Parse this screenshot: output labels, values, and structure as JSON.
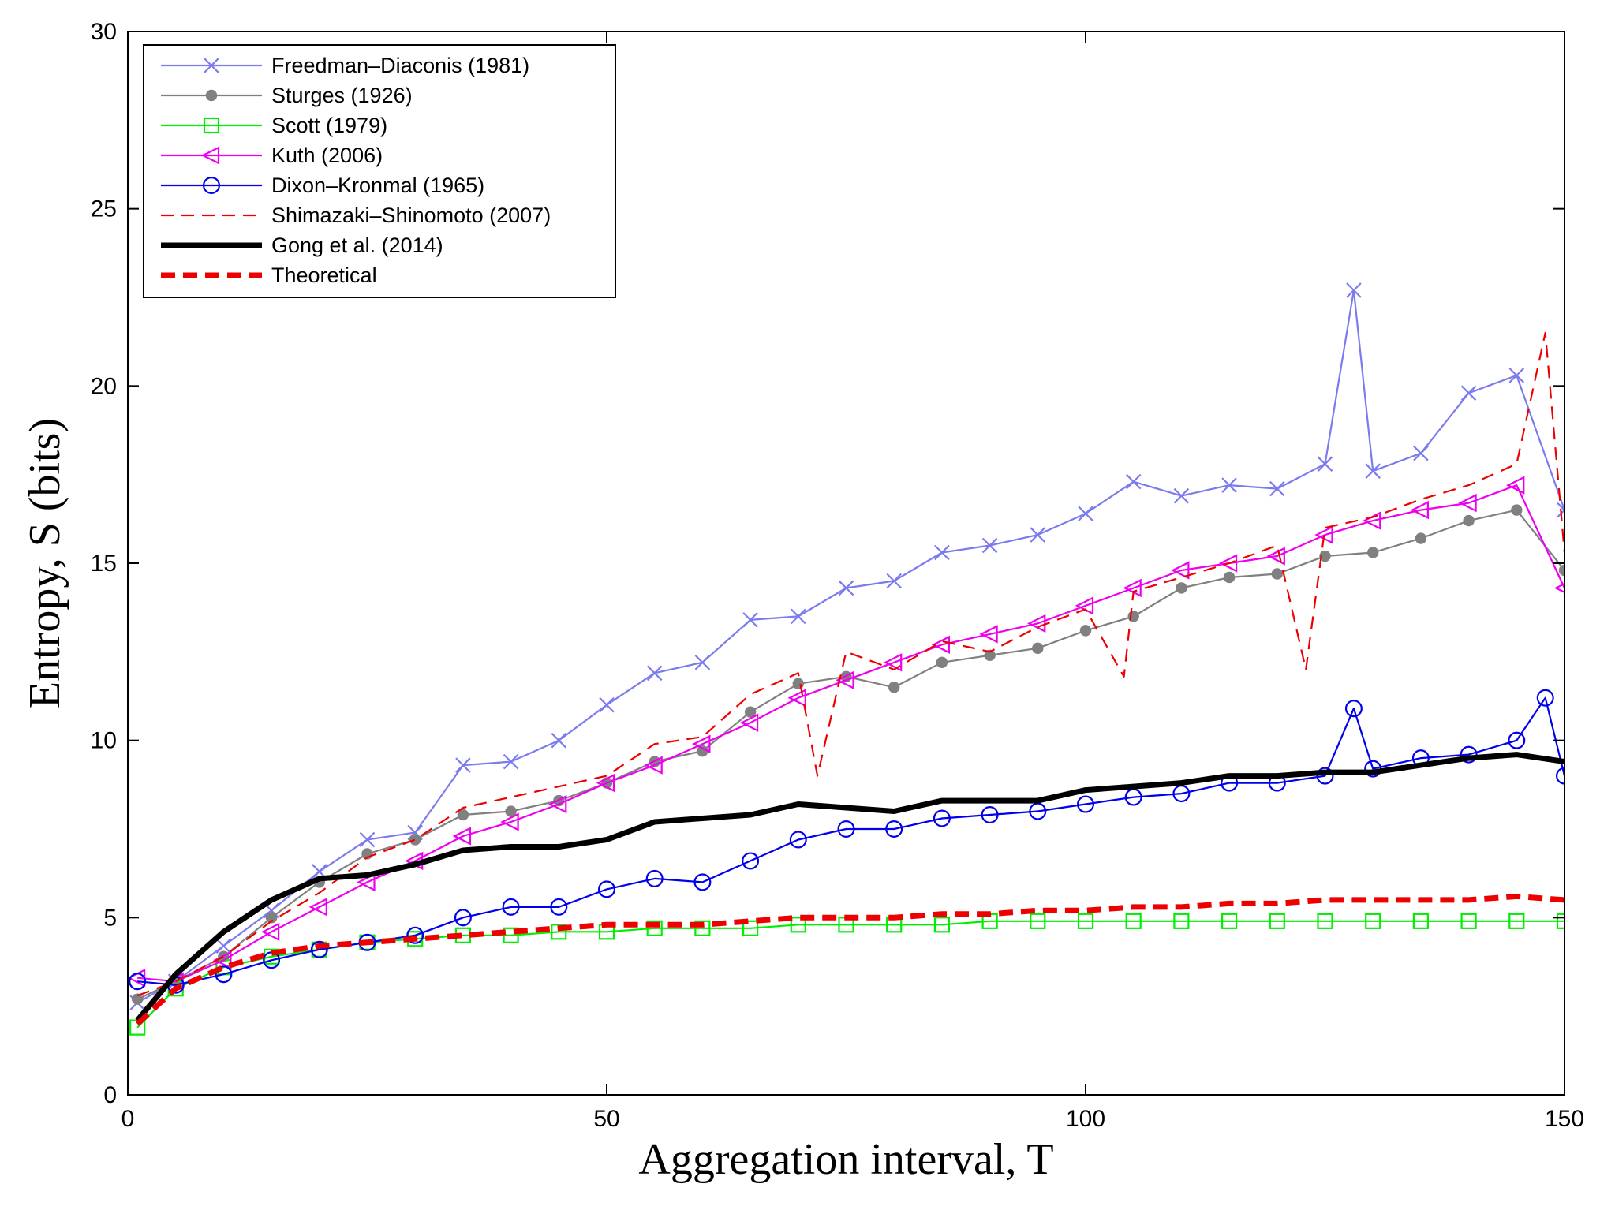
{
  "chart_data": {
    "type": "line",
    "title": "",
    "xlabel": "Aggregation interval, T",
    "ylabel": "Entropy, S (bits)",
    "xlim": [
      0,
      150
    ],
    "ylim": [
      0,
      30
    ],
    "xticks": [
      0,
      50,
      100,
      150
    ],
    "yticks": [
      0,
      5,
      10,
      15,
      20,
      25,
      30
    ],
    "xtick_labels": [
      "0",
      "50",
      "100",
      "150"
    ],
    "ytick_labels": [
      "0",
      "5",
      "10",
      "15",
      "20",
      "25",
      "30"
    ],
    "grid": false,
    "legend_position": "top-left",
    "series": [
      {
        "name": "Freedman–Diaconis (1981)",
        "color": "#7b7bef",
        "style": "solid-thin",
        "marker": "x",
        "x": [
          1,
          5,
          10,
          15,
          20,
          25,
          30,
          35,
          40,
          45,
          50,
          55,
          60,
          65,
          70,
          75,
          80,
          85,
          90,
          95,
          100,
          105,
          110,
          115,
          120,
          125,
          128,
          130,
          135,
          140,
          145,
          150
        ],
        "y": [
          2.6,
          3.2,
          4.2,
          5.2,
          6.3,
          7.2,
          7.4,
          9.3,
          9.4,
          10.0,
          11.0,
          11.9,
          12.2,
          13.4,
          13.5,
          14.3,
          14.5,
          15.3,
          15.5,
          15.8,
          16.4,
          17.3,
          16.9,
          17.2,
          17.1,
          17.8,
          22.7,
          17.6,
          18.1,
          19.8,
          20.3,
          16.5
        ]
      },
      {
        "name": "Sturges (1926)",
        "color": "#808080",
        "style": "solid-thin",
        "marker": "dot",
        "x": [
          1,
          5,
          10,
          15,
          20,
          25,
          30,
          35,
          40,
          45,
          50,
          55,
          60,
          65,
          70,
          75,
          80,
          85,
          90,
          95,
          100,
          105,
          110,
          115,
          120,
          125,
          130,
          135,
          140,
          145,
          150
        ],
        "y": [
          2.7,
          3.2,
          3.9,
          5.0,
          6.0,
          6.8,
          7.2,
          7.9,
          8.0,
          8.3,
          8.8,
          9.4,
          9.7,
          10.8,
          11.6,
          11.8,
          11.5,
          12.2,
          12.4,
          12.6,
          13.1,
          13.5,
          14.3,
          14.6,
          14.7,
          15.2,
          15.3,
          15.7,
          16.2,
          16.5,
          14.8
        ]
      },
      {
        "name": "Scott (1979)",
        "color": "#00ee00",
        "style": "solid-thin",
        "marker": "square",
        "x": [
          1,
          5,
          10,
          15,
          20,
          25,
          30,
          35,
          40,
          45,
          50,
          55,
          60,
          65,
          70,
          75,
          80,
          85,
          90,
          95,
          100,
          105,
          110,
          115,
          120,
          125,
          130,
          135,
          140,
          145,
          150
        ],
        "y": [
          1.9,
          3.0,
          3.6,
          3.9,
          4.1,
          4.3,
          4.4,
          4.5,
          4.5,
          4.6,
          4.6,
          4.7,
          4.7,
          4.7,
          4.8,
          4.8,
          4.8,
          4.8,
          4.9,
          4.9,
          4.9,
          4.9,
          4.9,
          4.9,
          4.9,
          4.9,
          4.9,
          4.9,
          4.9,
          4.9,
          4.9
        ]
      },
      {
        "name": "Kuth (2006)",
        "color": "#ee00ee",
        "style": "solid-thin",
        "marker": "triangle-left",
        "x": [
          1,
          5,
          10,
          15,
          20,
          25,
          30,
          35,
          40,
          45,
          50,
          55,
          60,
          65,
          70,
          75,
          80,
          85,
          90,
          95,
          100,
          105,
          110,
          115,
          120,
          125,
          130,
          135,
          140,
          145,
          150
        ],
        "y": [
          3.3,
          3.2,
          3.8,
          4.6,
          5.3,
          6.0,
          6.6,
          7.3,
          7.7,
          8.2,
          8.8,
          9.3,
          9.9,
          10.5,
          11.2,
          11.7,
          12.2,
          12.7,
          13.0,
          13.3,
          13.8,
          14.3,
          14.8,
          15.0,
          15.2,
          15.8,
          16.2,
          16.5,
          16.7,
          17.2,
          14.3
        ]
      },
      {
        "name": "Dixon–Kronmal (1965)",
        "color": "#0000ee",
        "style": "solid-thin",
        "marker": "circle",
        "x": [
          1,
          5,
          10,
          15,
          20,
          25,
          30,
          35,
          40,
          45,
          50,
          55,
          60,
          65,
          70,
          75,
          80,
          85,
          90,
          95,
          100,
          105,
          110,
          115,
          120,
          125,
          128,
          130,
          135,
          140,
          145,
          148,
          150
        ],
        "y": [
          3.2,
          3.1,
          3.4,
          3.8,
          4.1,
          4.3,
          4.5,
          5.0,
          5.3,
          5.3,
          5.8,
          6.1,
          6.0,
          6.6,
          7.2,
          7.5,
          7.5,
          7.8,
          7.9,
          8.0,
          8.2,
          8.4,
          8.5,
          8.8,
          8.8,
          9.0,
          10.9,
          9.2,
          9.5,
          9.6,
          10.0,
          11.2,
          9.0
        ]
      },
      {
        "name": "Shimazaki–Shinomoto (2007)",
        "color": "#ee0000",
        "style": "dashed-thin",
        "marker": "none",
        "x": [
          1,
          5,
          10,
          15,
          20,
          25,
          30,
          35,
          40,
          45,
          50,
          55,
          60,
          65,
          70,
          72,
          75,
          80,
          85,
          90,
          95,
          100,
          104,
          105,
          110,
          115,
          120,
          123,
          125,
          130,
          135,
          140,
          145,
          148,
          150
        ],
        "y": [
          2.8,
          3.2,
          3.9,
          4.9,
          5.7,
          6.7,
          7.2,
          8.1,
          8.4,
          8.7,
          9.0,
          9.9,
          10.1,
          11.3,
          11.9,
          9.0,
          12.5,
          12.0,
          12.8,
          12.5,
          13.2,
          13.7,
          11.8,
          14.2,
          14.6,
          15.0,
          15.5,
          12.0,
          16.0,
          16.3,
          16.8,
          17.2,
          17.8,
          21.5,
          15.3
        ]
      },
      {
        "name": "Gong et al. (2014)",
        "color": "#000000",
        "style": "solid-thick",
        "marker": "none",
        "x": [
          1,
          5,
          10,
          15,
          20,
          25,
          30,
          35,
          40,
          45,
          50,
          55,
          60,
          65,
          70,
          75,
          80,
          85,
          90,
          95,
          100,
          105,
          110,
          115,
          120,
          125,
          130,
          135,
          140,
          145,
          150
        ],
        "y": [
          2.1,
          3.4,
          4.6,
          5.5,
          6.1,
          6.2,
          6.5,
          6.9,
          7.0,
          7.0,
          7.2,
          7.7,
          7.8,
          7.9,
          8.2,
          8.1,
          8.0,
          8.3,
          8.3,
          8.3,
          8.6,
          8.7,
          8.8,
          9.0,
          9.0,
          9.1,
          9.1,
          9.3,
          9.5,
          9.6,
          9.4
        ]
      },
      {
        "name": "Theoretical",
        "color": "#ee0000",
        "style": "dashed-thick",
        "marker": "none",
        "x": [
          1,
          5,
          10,
          15,
          20,
          25,
          30,
          35,
          40,
          45,
          50,
          55,
          60,
          65,
          70,
          75,
          80,
          85,
          90,
          95,
          100,
          105,
          110,
          115,
          120,
          125,
          130,
          135,
          140,
          145,
          150
        ],
        "y": [
          2.0,
          3.0,
          3.6,
          4.0,
          4.2,
          4.3,
          4.4,
          4.5,
          4.6,
          4.7,
          4.8,
          4.8,
          4.8,
          4.9,
          5.0,
          5.0,
          5.0,
          5.1,
          5.1,
          5.2,
          5.2,
          5.3,
          5.3,
          5.4,
          5.4,
          5.5,
          5.5,
          5.5,
          5.5,
          5.6,
          5.5
        ]
      }
    ]
  }
}
